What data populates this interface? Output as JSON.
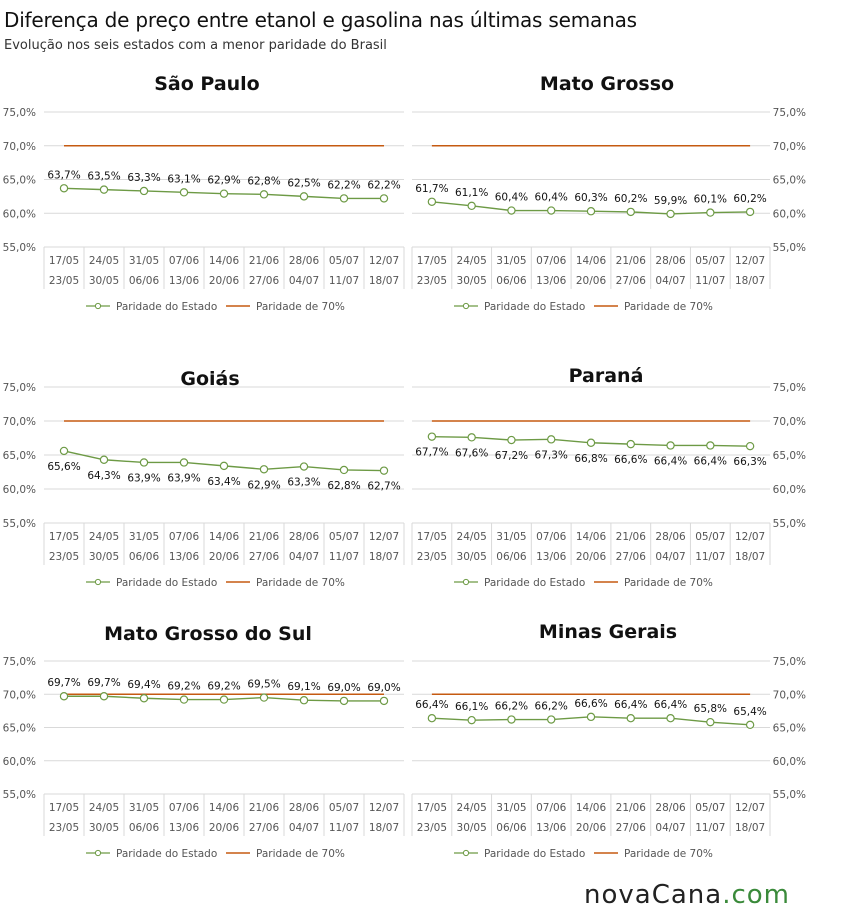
{
  "title": "Diferença de preço entre etanol e gasolina nas últimas semanas",
  "subtitle": "Evolução nos seis estados com a menor paridade do Brasil",
  "logo": {
    "part1": "novaCana",
    "part2": ".com"
  },
  "colors": {
    "state_line": "#6d9a45",
    "reference_line": "#c55a11",
    "grid": "#d9d9d9",
    "text": "#555555"
  },
  "chart_data": [
    {
      "type": "line",
      "title": "São Paulo",
      "categories": [
        [
          "17/05",
          "23/05"
        ],
        [
          "24/05",
          "30/05"
        ],
        [
          "31/05",
          "06/06"
        ],
        [
          "07/06",
          "13/06"
        ],
        [
          "14/06",
          "20/06"
        ],
        [
          "21/06",
          "27/06"
        ],
        [
          "28/06",
          "04/07"
        ],
        [
          "05/07",
          "11/07"
        ],
        [
          "12/07",
          "18/07"
        ]
      ],
      "y_ticks": [
        "55,0%",
        "60,0%",
        "65,0%",
        "70,0%",
        "75,0%"
      ],
      "ylim": [
        55,
        75
      ],
      "y_axis_side": "left",
      "series": [
        {
          "name": "Paridade do Estado",
          "values": [
            63.7,
            63.5,
            63.3,
            63.1,
            62.9,
            62.8,
            62.5,
            62.2,
            62.2
          ],
          "labels": [
            "63,7%",
            "63,5%",
            "63,3%",
            "63,1%",
            "62,9%",
            "62,8%",
            "62,5%",
            "62,2%",
            "62,2%"
          ],
          "label_position": "above"
        },
        {
          "name": "Paridade de 70%",
          "values": [
            70,
            70,
            70,
            70,
            70,
            70,
            70,
            70,
            70
          ]
        }
      ]
    },
    {
      "type": "line",
      "title": "Mato Grosso",
      "categories": [
        [
          "17/05",
          "23/05"
        ],
        [
          "24/05",
          "30/05"
        ],
        [
          "31/05",
          "06/06"
        ],
        [
          "07/06",
          "13/06"
        ],
        [
          "14/06",
          "20/06"
        ],
        [
          "21/06",
          "27/06"
        ],
        [
          "28/06",
          "04/07"
        ],
        [
          "05/07",
          "11/07"
        ],
        [
          "12/07",
          "18/07"
        ]
      ],
      "y_ticks": [
        "55,0%",
        "60,0%",
        "65,0%",
        "70,0%",
        "75,0%"
      ],
      "ylim": [
        55,
        75
      ],
      "y_axis_side": "right",
      "series": [
        {
          "name": "Paridade do Estado",
          "values": [
            61.7,
            61.1,
            60.4,
            60.4,
            60.3,
            60.2,
            59.9,
            60.1,
            60.2
          ],
          "labels": [
            "61,7%",
            "61,1%",
            "60,4%",
            "60,4%",
            "60,3%",
            "60,2%",
            "59,9%",
            "60,1%",
            "60,2%"
          ],
          "label_position": "above"
        },
        {
          "name": "Paridade de 70%",
          "values": [
            70,
            70,
            70,
            70,
            70,
            70,
            70,
            70,
            70
          ]
        }
      ]
    },
    {
      "type": "line",
      "title": "Goiás",
      "categories": [
        [
          "17/05",
          "23/05"
        ],
        [
          "24/05",
          "30/05"
        ],
        [
          "31/05",
          "06/06"
        ],
        [
          "07/06",
          "13/06"
        ],
        [
          "14/06",
          "20/06"
        ],
        [
          "21/06",
          "27/06"
        ],
        [
          "28/06",
          "04/07"
        ],
        [
          "05/07",
          "11/07"
        ],
        [
          "12/07",
          "18/07"
        ]
      ],
      "y_ticks": [
        "55,0%",
        "60,0%",
        "65,0%",
        "70,0%",
        "75,0%"
      ],
      "ylim": [
        55,
        75
      ],
      "y_axis_side": "left",
      "series": [
        {
          "name": "Paridade do Estado",
          "values": [
            65.6,
            64.3,
            63.9,
            63.9,
            63.4,
            62.9,
            63.3,
            62.8,
            62.7
          ],
          "labels": [
            "65,6%",
            "64,3%",
            "63,9%",
            "63,9%",
            "63,4%",
            "62,9%",
            "63,3%",
            "62,8%",
            "62,7%"
          ],
          "label_position": "below"
        },
        {
          "name": "Paridade de 70%",
          "values": [
            70,
            70,
            70,
            70,
            70,
            70,
            70,
            70,
            70
          ]
        }
      ]
    },
    {
      "type": "line",
      "title": "Paraná",
      "categories": [
        [
          "17/05",
          "23/05"
        ],
        [
          "24/05",
          "30/05"
        ],
        [
          "31/05",
          "06/06"
        ],
        [
          "07/06",
          "13/06"
        ],
        [
          "14/06",
          "20/06"
        ],
        [
          "21/06",
          "27/06"
        ],
        [
          "28/06",
          "04/07"
        ],
        [
          "05/07",
          "11/07"
        ],
        [
          "12/07",
          "18/07"
        ]
      ],
      "y_ticks": [
        "55,0%",
        "60,0%",
        "65,0%",
        "70,0%",
        "75,0%"
      ],
      "ylim": [
        55,
        75
      ],
      "y_axis_side": "right",
      "series": [
        {
          "name": "Paridade do Estado",
          "values": [
            67.7,
            67.6,
            67.2,
            67.3,
            66.8,
            66.6,
            66.4,
            66.4,
            66.3
          ],
          "labels": [
            "67,7%",
            "67,6%",
            "67,2%",
            "67,3%",
            "66,8%",
            "66,6%",
            "66,4%",
            "66,4%",
            "66,3%"
          ],
          "label_position": "below"
        },
        {
          "name": "Paridade de 70%",
          "values": [
            70,
            70,
            70,
            70,
            70,
            70,
            70,
            70,
            70
          ]
        }
      ]
    },
    {
      "type": "line",
      "title": "Mato Grosso do Sul",
      "categories": [
        [
          "17/05",
          "23/05"
        ],
        [
          "24/05",
          "30/05"
        ],
        [
          "31/05",
          "06/06"
        ],
        [
          "07/06",
          "13/06"
        ],
        [
          "14/06",
          "20/06"
        ],
        [
          "21/06",
          "27/06"
        ],
        [
          "28/06",
          "04/07"
        ],
        [
          "05/07",
          "11/07"
        ],
        [
          "12/07",
          "18/07"
        ]
      ],
      "y_ticks": [
        "55,0%",
        "60,0%",
        "65,0%",
        "70,0%",
        "75,0%"
      ],
      "ylim": [
        55,
        75
      ],
      "y_axis_side": "left",
      "series": [
        {
          "name": "Paridade do Estado",
          "values": [
            69.7,
            69.7,
            69.4,
            69.2,
            69.2,
            69.5,
            69.1,
            69.0,
            69.0
          ],
          "labels": [
            "69,7%",
            "69,7%",
            "69,4%",
            "69,2%",
            "69,2%",
            "69,5%",
            "69,1%",
            "69,0%",
            "69,0%"
          ],
          "label_position": "above"
        },
        {
          "name": "Paridade de 70%",
          "values": [
            70,
            70,
            70,
            70,
            70,
            70,
            70,
            70,
            70
          ]
        }
      ]
    },
    {
      "type": "line",
      "title": "Minas Gerais",
      "categories": [
        [
          "17/05",
          "23/05"
        ],
        [
          "24/05",
          "30/05"
        ],
        [
          "31/05",
          "06/06"
        ],
        [
          "07/06",
          "13/06"
        ],
        [
          "14/06",
          "20/06"
        ],
        [
          "21/06",
          "27/06"
        ],
        [
          "28/06",
          "04/07"
        ],
        [
          "05/07",
          "11/07"
        ],
        [
          "12/07",
          "18/07"
        ]
      ],
      "y_ticks": [
        "55,0%",
        "60,0%",
        "65,0%",
        "70,0%",
        "75,0%"
      ],
      "ylim": [
        55,
        75
      ],
      "y_axis_side": "right",
      "series": [
        {
          "name": "Paridade do Estado",
          "values": [
            66.4,
            66.1,
            66.2,
            66.2,
            66.6,
            66.4,
            66.4,
            65.8,
            65.4
          ],
          "labels": [
            "66,4%",
            "66,1%",
            "66,2%",
            "66,2%",
            "66,6%",
            "66,4%",
            "66,4%",
            "65,8%",
            "65,4%"
          ],
          "label_position": "above"
        },
        {
          "name": "Paridade de 70%",
          "values": [
            70,
            70,
            70,
            70,
            70,
            70,
            70,
            70,
            70
          ]
        }
      ]
    }
  ]
}
